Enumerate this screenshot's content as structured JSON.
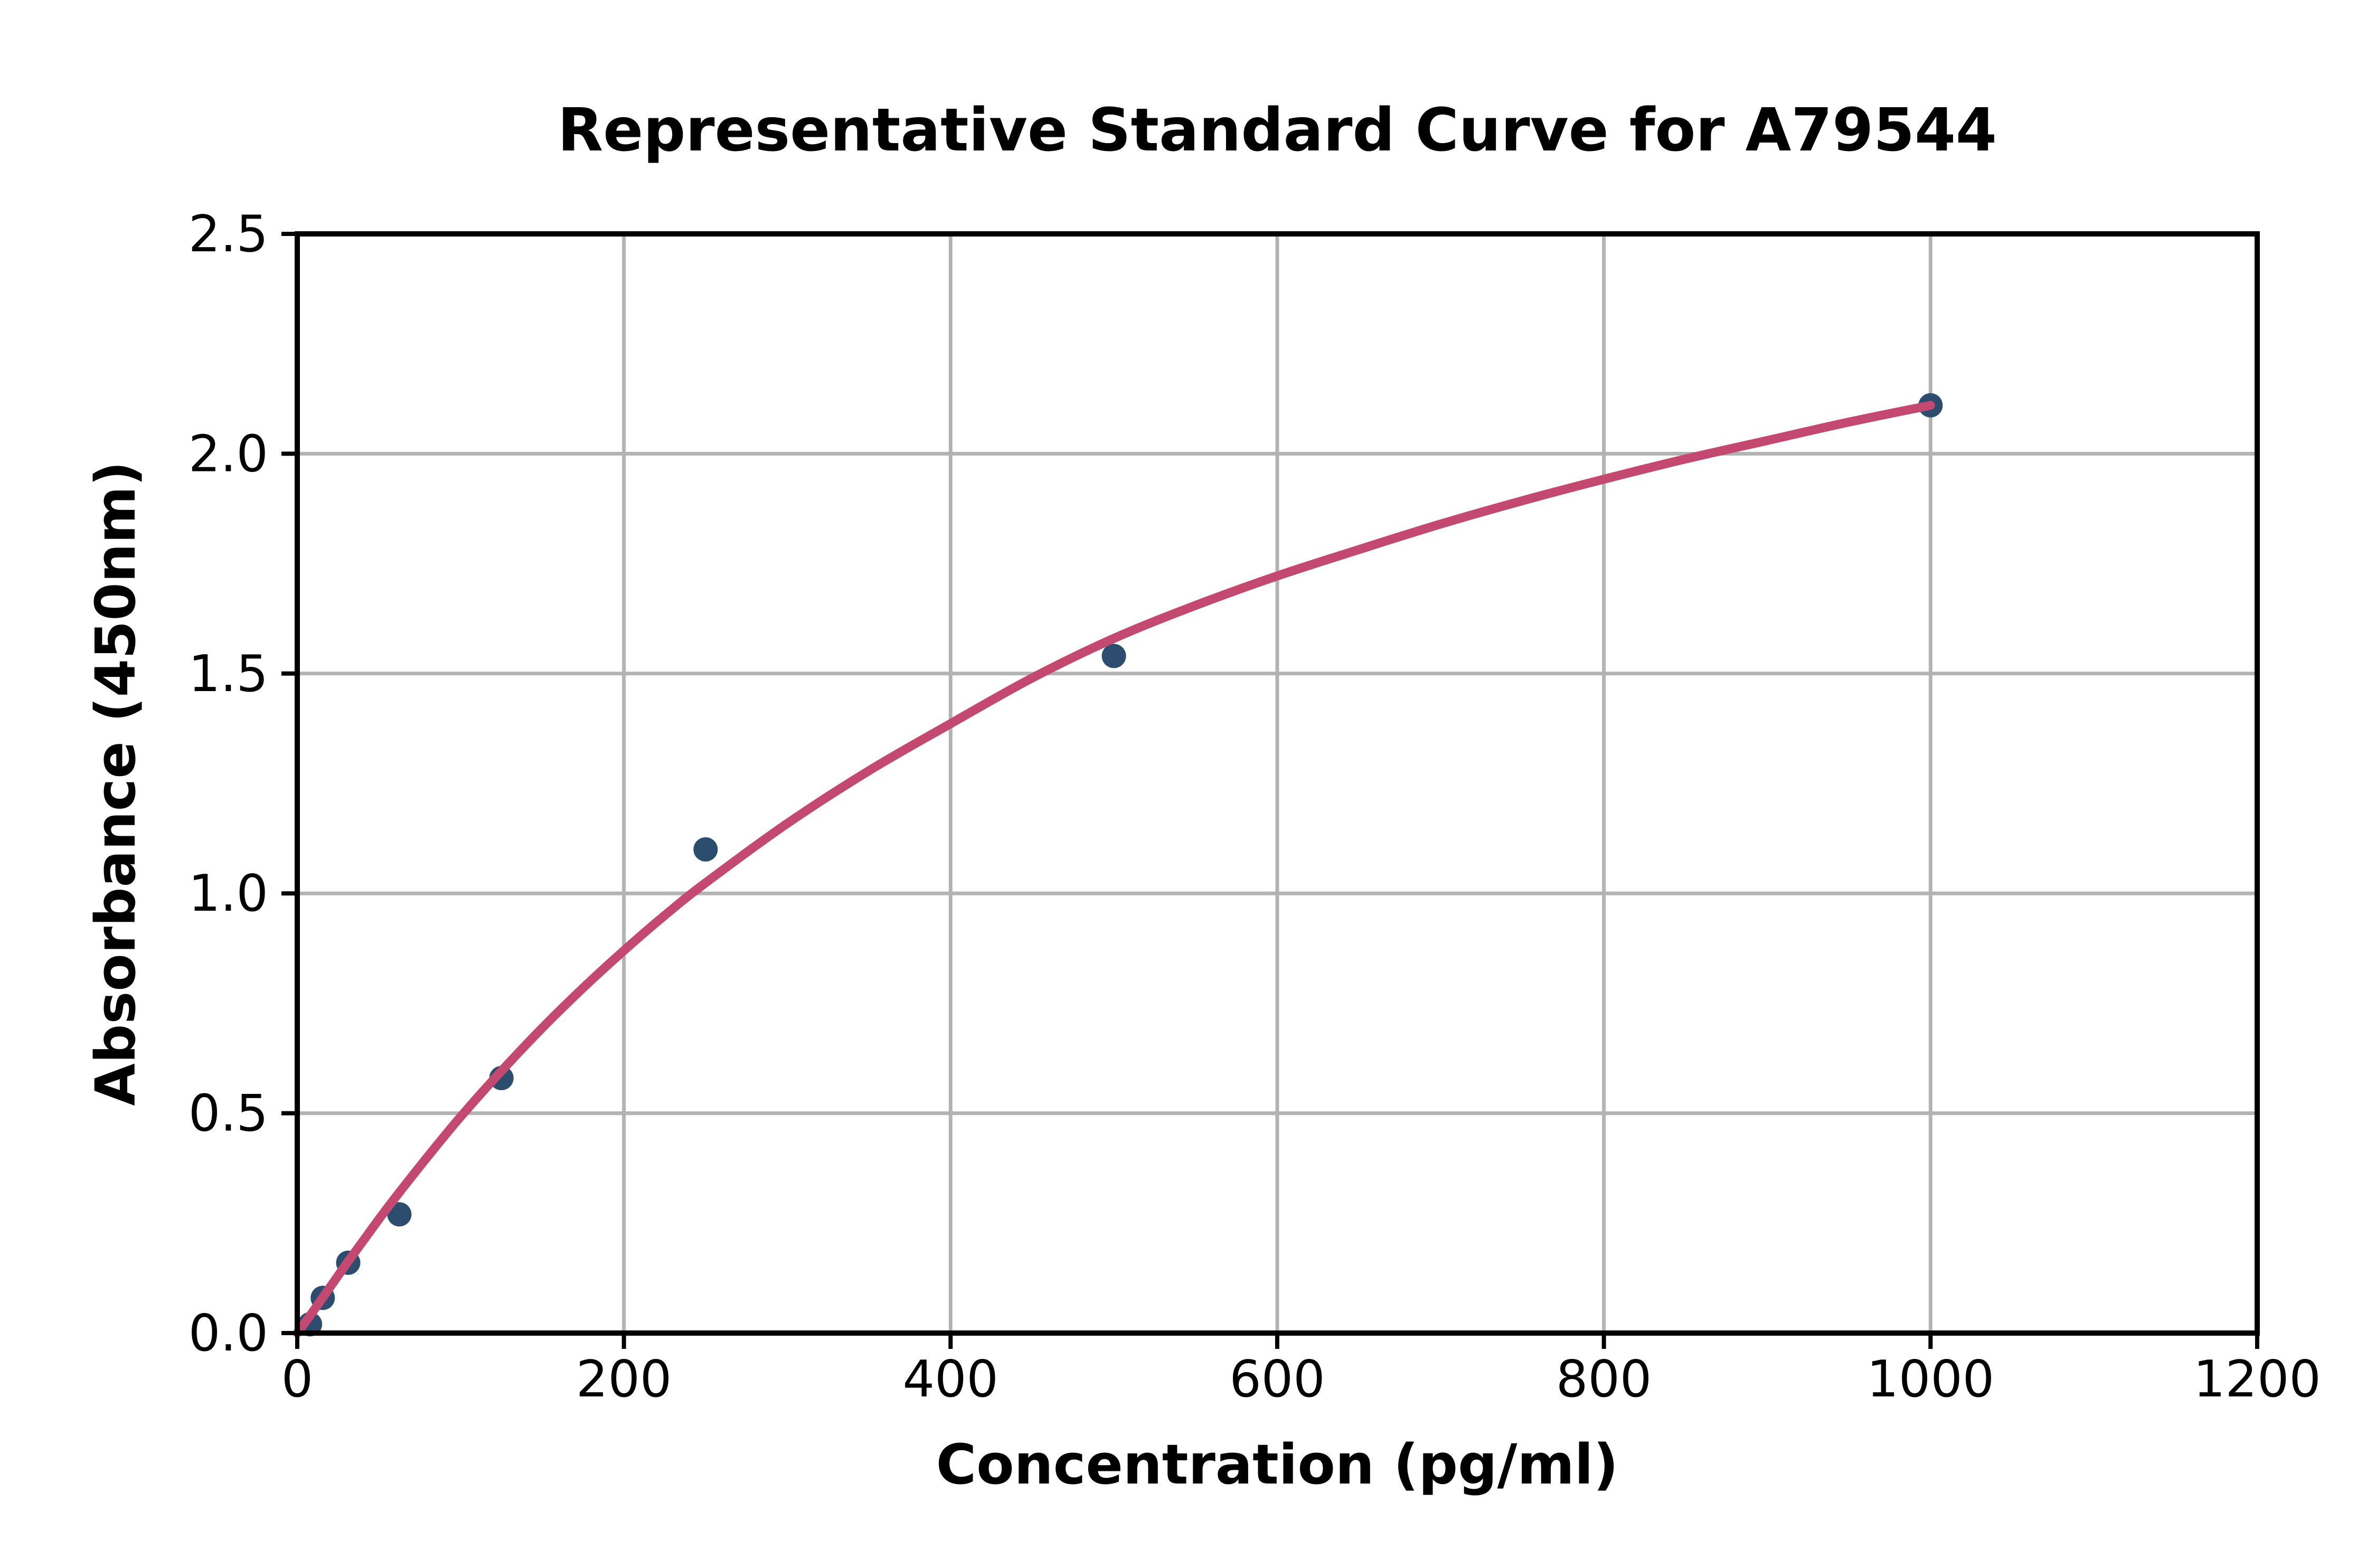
{
  "chart_data": {
    "type": "scatter",
    "title": "Representative Standard Curve for A79544",
    "xlabel": "Concentration (pg/ml)",
    "ylabel": "Absorbance (450nm)",
    "xlim": [
      0,
      1200
    ],
    "ylim": [
      0,
      2.5
    ],
    "xticks": {
      "values": [
        0,
        200,
        400,
        600,
        800,
        1000,
        1200
      ],
      "labels": [
        "0",
        "200",
        "400",
        "600",
        "800",
        "1000",
        "1200"
      ]
    },
    "yticks": {
      "values": [
        0,
        0.5,
        1.0,
        1.5,
        2.0,
        2.5
      ],
      "labels": [
        "0.0",
        "0.5",
        "1.0",
        "1.5",
        "2.0",
        "2.5"
      ]
    },
    "grid": true,
    "legend_position": "none",
    "series": [
      {
        "name": "standard-points",
        "type": "scatter",
        "points": [
          [
            7.8,
            0.02
          ],
          [
            15.6,
            0.08
          ],
          [
            31.2,
            0.16
          ],
          [
            62.5,
            0.27
          ],
          [
            125,
            0.58
          ],
          [
            250,
            1.1
          ],
          [
            500,
            1.54
          ],
          [
            1000,
            2.11
          ]
        ]
      },
      {
        "name": "fitted-curve",
        "type": "line",
        "points": [
          [
            0,
            0.0
          ],
          [
            10,
            0.051
          ],
          [
            20,
            0.104
          ],
          [
            30,
            0.157
          ],
          [
            40,
            0.208
          ],
          [
            50,
            0.259
          ],
          [
            60,
            0.308
          ],
          [
            80,
            0.402
          ],
          [
            100,
            0.492
          ],
          [
            125,
            0.596
          ],
          [
            150,
            0.694
          ],
          [
            175,
            0.785
          ],
          [
            200,
            0.87
          ],
          [
            225,
            0.95
          ],
          [
            250,
            1.024
          ],
          [
            300,
            1.159
          ],
          [
            350,
            1.279
          ],
          [
            400,
            1.386
          ],
          [
            450,
            1.49
          ],
          [
            500,
            1.58
          ],
          [
            550,
            1.655
          ],
          [
            600,
            1.722
          ],
          [
            650,
            1.782
          ],
          [
            700,
            1.84
          ],
          [
            750,
            1.893
          ],
          [
            800,
            1.942
          ],
          [
            850,
            1.988
          ],
          [
            900,
            2.03
          ],
          [
            950,
            2.072
          ],
          [
            1000,
            2.11
          ]
        ]
      }
    ],
    "colors": {
      "marker": "#2d4d6e",
      "curve": "#c44970",
      "grid": "#b3b3b3",
      "axis": "#000000",
      "background": "#ffffff"
    }
  }
}
